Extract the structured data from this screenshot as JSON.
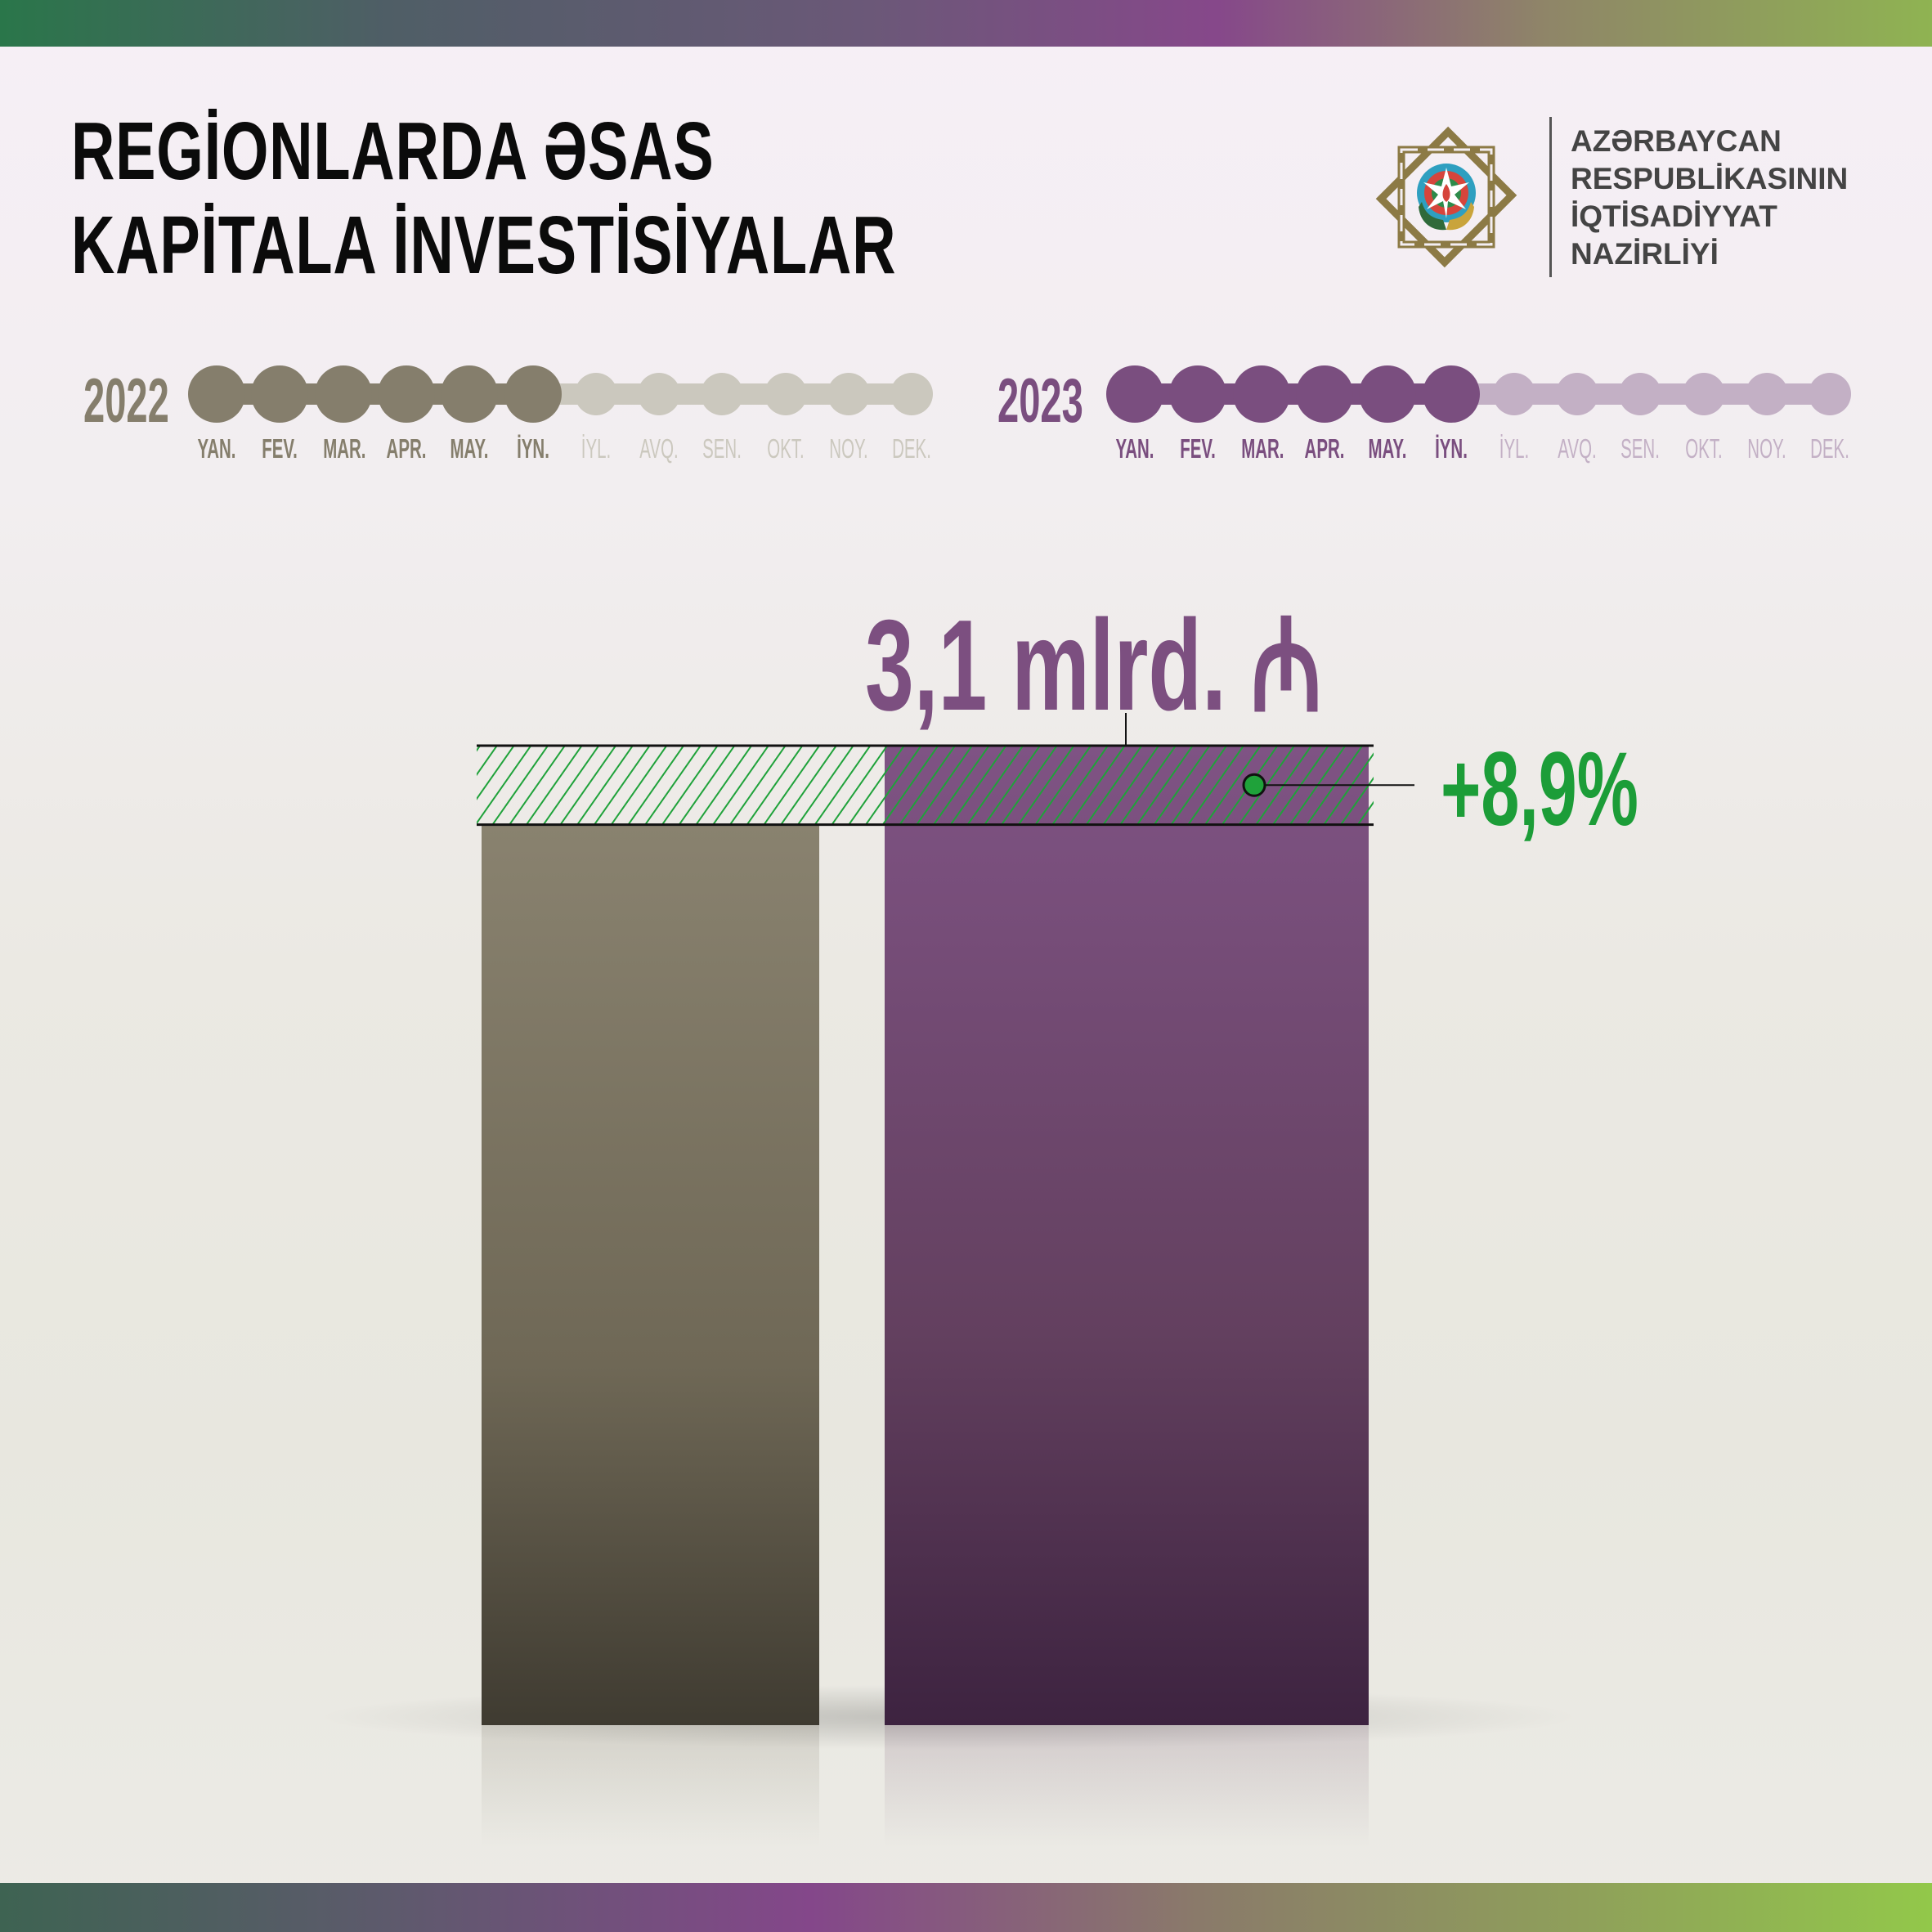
{
  "header": {
    "title_line1": "REGİONLARDA ƏSAS",
    "title_line2": "KAPİTALA İNVESTİSİYALAR"
  },
  "organization": {
    "logo_icon": "azerbaijan-emblem-octagram-logo",
    "lines": [
      "AZƏRBAYCAN",
      "RESPUBLİKASININ",
      "İQTİSADİYYAT",
      "NAZİRLİYİ"
    ]
  },
  "timelines": [
    {
      "year": "2022",
      "color_active": "#857e6c",
      "color_inactive": "#cbc8be",
      "active_months": 6
    },
    {
      "year": "2023",
      "color_active": "#7a4e7f",
      "color_inactive": "#c3b0c5",
      "active_months": 6
    }
  ],
  "months": [
    "YAN.",
    "FEV.",
    "MAR.",
    "APR.",
    "MAY.",
    "İYN.",
    "İYL.",
    "AVQ.",
    "SEN.",
    "OKT.",
    "NOY.",
    "DEK."
  ],
  "chart_data": {
    "type": "bar",
    "categories": [
      "2022",
      "2023"
    ],
    "values": [
      2.85,
      3.1
    ],
    "unit": "mlrd. ₼",
    "value_label": "3,1 mlrd. ₼",
    "change_label": "+8,9%",
    "colors": {
      "2022": "#857e6c",
      "2023": "#7c5080",
      "growth": "#1fa23a"
    }
  }
}
